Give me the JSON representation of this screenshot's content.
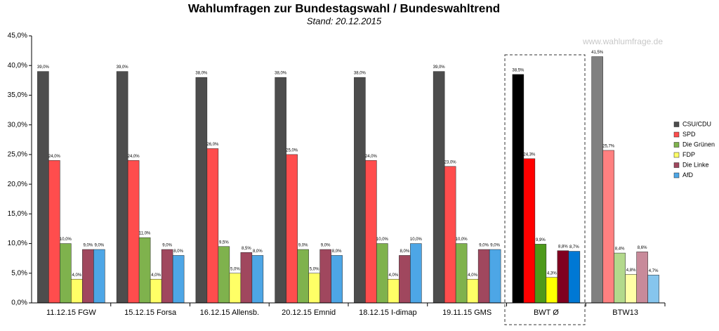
{
  "chart_data": {
    "type": "bar",
    "title": "Wahlumfragen zur Bundestagswahl / Bundeswahltrend",
    "subtitle": "Stand: 20.12.2015",
    "watermark": "www.wahlumfrage.de",
    "categories": [
      "11.12.15 FGW",
      "15.12.15 Forsa",
      "16.12.15 Allensb.",
      "20.12.15 Emnid",
      "18.12.15 I-dimap",
      "19.11.15 GMS",
      "BWT Ø",
      "BTW13"
    ],
    "series": [
      {
        "name": "CSU/CDU",
        "color": "#4d4d4d",
        "colors": [
          "#4d4d4d",
          "#4d4d4d",
          "#4d4d4d",
          "#4d4d4d",
          "#4d4d4d",
          "#4d4d4d",
          "#000000",
          "#808080"
        ],
        "values": [
          39.0,
          39.0,
          38.0,
          38.0,
          38.0,
          39.0,
          38.5,
          41.5
        ],
        "value_labels": [
          "39,0%",
          "39,0%",
          "38,0%",
          "38,0%",
          "38,0%",
          "39,0%",
          "38,5%",
          "41,5%"
        ]
      },
      {
        "name": "SPD",
        "color": "#ff4d4d",
        "colors": [
          "#ff4d4d",
          "#ff4d4d",
          "#ff4d4d",
          "#ff4d4d",
          "#ff4d4d",
          "#ff4d4d",
          "#ff0000",
          "#ff8080"
        ],
        "values": [
          24.0,
          24.0,
          26.0,
          25.0,
          24.0,
          23.0,
          24.3,
          25.7
        ],
        "value_labels": [
          "24,0%",
          "24,0%",
          "26,0%",
          "25,0%",
          "24,0%",
          "23,0%",
          "24,3%",
          "25,7%"
        ]
      },
      {
        "name": "Die Grünen",
        "color": "#7fb24d",
        "colors": [
          "#7fb24d",
          "#7fb24d",
          "#7fb24d",
          "#7fb24d",
          "#7fb24d",
          "#7fb24d",
          "#4d9a1a",
          "#b3d98c"
        ],
        "values": [
          10.0,
          11.0,
          9.5,
          9.0,
          10.0,
          10.0,
          9.9,
          8.4
        ],
        "value_labels": [
          "10,0%",
          "11,0%",
          "9,5%",
          "9,0%",
          "10,0%",
          "10,0%",
          "9,9%",
          "8,4%"
        ]
      },
      {
        "name": "FDP",
        "color": "#ffff66",
        "colors": [
          "#ffff66",
          "#ffff66",
          "#ffff66",
          "#ffff66",
          "#ffff66",
          "#ffff66",
          "#ffff00",
          "#ffffa6"
        ],
        "values": [
          4.0,
          4.0,
          5.0,
          5.0,
          4.0,
          4.0,
          4.3,
          4.8
        ],
        "value_labels": [
          "4,0%",
          "4,0%",
          "5,0%",
          "5,0%",
          "4,0%",
          "4,0%",
          "4,3%",
          "4,8%"
        ]
      },
      {
        "name": "Die Linke",
        "color": "#a0475e",
        "colors": [
          "#a0475e",
          "#a0475e",
          "#a0475e",
          "#a0475e",
          "#a0475e",
          "#a0475e",
          "#800020",
          "#c88a9a"
        ],
        "values": [
          9.0,
          9.0,
          8.5,
          9.0,
          8.0,
          9.0,
          8.8,
          8.6
        ],
        "value_labels": [
          "9,0%",
          "9,0%",
          "8,5%",
          "9,0%",
          "8,0%",
          "9,0%",
          "8,8%",
          "8,6%"
        ]
      },
      {
        "name": "AfD",
        "color": "#4da6e6",
        "colors": [
          "#4da6e6",
          "#4da6e6",
          "#4da6e6",
          "#4da6e6",
          "#4da6e6",
          "#4da6e6",
          "#0078d4",
          "#86c5ed"
        ],
        "values": [
          9.0,
          8.0,
          8.0,
          8.0,
          10.0,
          9.0,
          8.7,
          4.7
        ],
        "value_labels": [
          "9,0%",
          "8,0%",
          "8,0%",
          "8,0%",
          "10,0%",
          "9,0%",
          "8,7%",
          "4,7%"
        ]
      }
    ],
    "ylim": [
      0,
      45
    ],
    "yticks": [
      {
        "value": 0,
        "label": "0,0%"
      },
      {
        "value": 5,
        "label": "5,0%"
      },
      {
        "value": 10,
        "label": "10,0%"
      },
      {
        "value": 15,
        "label": "15,0%"
      },
      {
        "value": 20,
        "label": "20,0%"
      },
      {
        "value": 25,
        "label": "25,0%"
      },
      {
        "value": 30,
        "label": "30,0%"
      },
      {
        "value": 35,
        "label": "35,0%"
      },
      {
        "value": 40,
        "label": "40,0%"
      },
      {
        "value": 45,
        "label": "45,0%"
      }
    ],
    "grid": false,
    "legend": "right"
  }
}
